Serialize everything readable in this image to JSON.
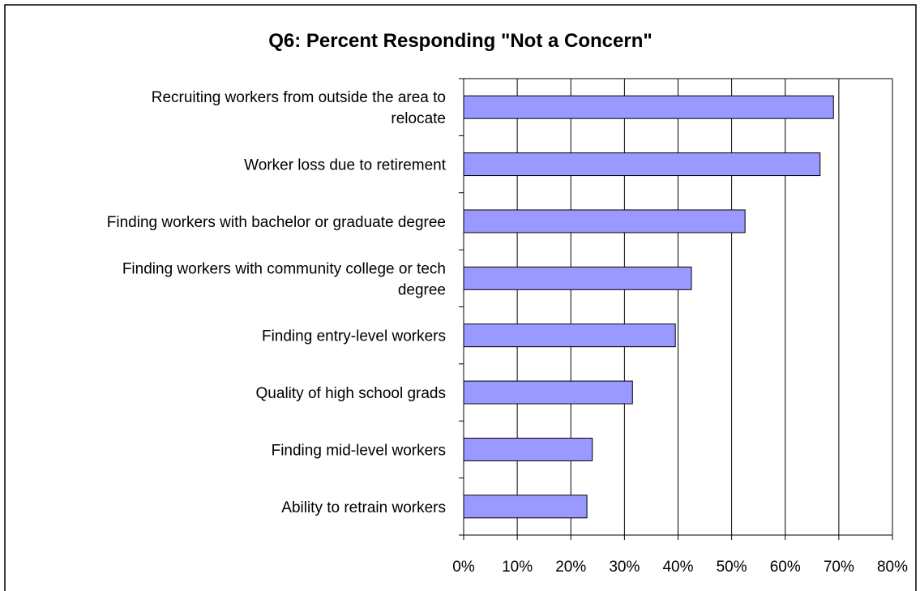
{
  "chart_data": {
    "type": "bar",
    "orientation": "horizontal",
    "title": "Q6: Percent Responding \"Not a Concern\"",
    "xlabel": "",
    "ylabel": "",
    "categories": [
      [
        "Recruiting workers from outside the area to",
        "relocate"
      ],
      [
        "Worker loss due to retirement"
      ],
      [
        "Finding workers with bachelor or graduate degree"
      ],
      [
        "Finding workers with community college or tech",
        "degree"
      ],
      [
        "Finding entry-level workers"
      ],
      [
        "Quality of high school grads"
      ],
      [
        "Finding mid-level workers"
      ],
      [
        "Ability to retrain workers"
      ]
    ],
    "values": [
      69,
      66.5,
      52.5,
      42.5,
      39.5,
      31.5,
      24,
      23
    ],
    "xlim": [
      0,
      80
    ],
    "ticks": [
      "0%",
      "10%",
      "20%",
      "30%",
      "40%",
      "50%",
      "60%",
      "70%",
      "80%"
    ],
    "tick_values": [
      0,
      10,
      20,
      30,
      40,
      50,
      60,
      70,
      80
    ],
    "grid": true,
    "legend": "none",
    "bar_color": "#9999ff"
  }
}
